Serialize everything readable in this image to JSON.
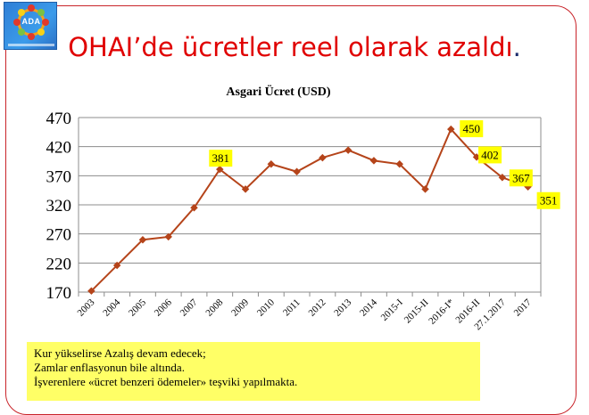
{
  "slide": {
    "title_main": "OHAI’de ücretler reel olarak azaldı",
    "title_dot": ".",
    "logo_text": "ADA"
  },
  "chart_data": {
    "type": "line",
    "title": "Asgari Ücret  (USD)",
    "xlabel": "",
    "ylabel": "",
    "categories": [
      "2003",
      "2004",
      "2005",
      "2006",
      "2007",
      "2008",
      "2009",
      "2010",
      "2011",
      "2012",
      "2013",
      "2014",
      "2015-I",
      "2015-II",
      "2016-I*",
      "2016-II",
      "27.1.2017",
      "2017"
    ],
    "series": [
      {
        "values": [
          172,
          216,
          260,
          265,
          315,
          381,
          347,
          390,
          377,
          401,
          414,
          396,
          390,
          347,
          450,
          402,
          367,
          351
        ]
      }
    ],
    "ylim": [
      170,
      470
    ],
    "yticks": [
      170,
      220,
      270,
      320,
      370,
      420,
      470
    ],
    "grid": true,
    "line_color": "#b5441a",
    "label_bg": "#ffff00",
    "data_labels": [
      {
        "index": 5,
        "text": "381"
      },
      {
        "index": 14,
        "text": "450"
      },
      {
        "index": 15,
        "text": "402"
      },
      {
        "index": 16,
        "text": "367"
      },
      {
        "index": 17,
        "text": "351"
      }
    ]
  },
  "notes": {
    "lines": [
      "Kur yükselirse Azalış devam edecek;",
      "Zamlar enflasyonun bile altında.",
      "İşverenlere «ücret  benzeri ödemeler» teşviki yapılmakta."
    ]
  }
}
